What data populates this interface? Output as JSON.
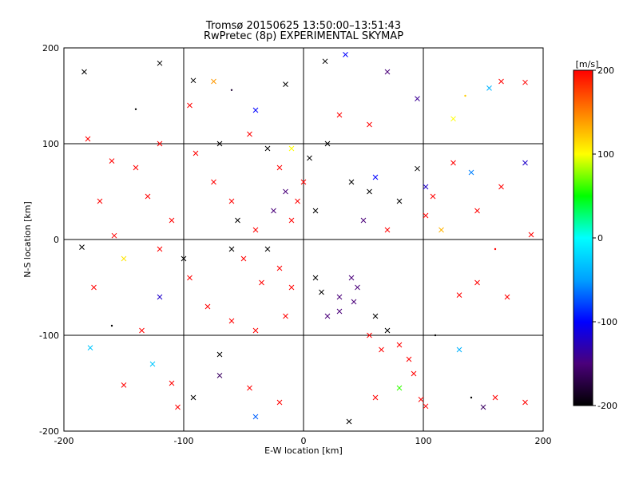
{
  "chart_data": {
    "type": "scatter",
    "title": "Tromsø 20150625 13:50:00–13:51:43",
    "subtitle": "RwPretec (8p) EXPERIMENTAL SKYMAP",
    "xlabel": "E-W location [km]",
    "ylabel": "N-S location [km]",
    "xlim": [
      -200,
      200
    ],
    "ylim": [
      -200,
      200
    ],
    "xticks": [
      -200,
      -100,
      0,
      100,
      200
    ],
    "yticks": [
      -200,
      -100,
      0,
      100,
      200
    ],
    "grid": true,
    "marker_types": [
      "dot",
      "cross"
    ],
    "colorbar": {
      "label": "[m/s]",
      "min": -200,
      "max": 200,
      "ticks": [
        200,
        100,
        0,
        -100,
        -200
      ],
      "colormap": [
        "#000000",
        "#4a007a",
        "#0000ff",
        "#00a0ff",
        "#00ffff",
        "#00ff00",
        "#ffff00",
        "#ff8000",
        "#ff0000"
      ]
    },
    "series": [
      {
        "values": [
          {
            "x": -183,
            "y": 175,
            "v": -200,
            "m": "x"
          },
          {
            "x": -140,
            "y": 136,
            "v": -200,
            "m": "d"
          },
          {
            "x": -120,
            "y": 184,
            "v": -200,
            "m": "x"
          },
          {
            "x": -92,
            "y": 166,
            "v": -200,
            "m": "x"
          },
          {
            "x": -60,
            "y": 156,
            "v": -180,
            "m": "d"
          },
          {
            "x": -15,
            "y": 162,
            "v": -200,
            "m": "x"
          },
          {
            "x": 18,
            "y": 186,
            "v": -200,
            "m": "x"
          },
          {
            "x": 35,
            "y": 193,
            "v": -100,
            "m": "x"
          },
          {
            "x": 70,
            "y": 175,
            "v": -150,
            "m": "x"
          },
          {
            "x": 95,
            "y": 147,
            "v": -140,
            "m": "x"
          },
          {
            "x": 135,
            "y": 150,
            "v": 120,
            "m": "d"
          },
          {
            "x": 165,
            "y": 165,
            "v": 200,
            "m": "x"
          },
          {
            "x": 185,
            "y": 164,
            "v": 200,
            "m": "x"
          },
          {
            "x": 155,
            "y": 158,
            "v": -40,
            "m": "x"
          },
          {
            "x": 125,
            "y": 126,
            "v": 100,
            "m": "x"
          },
          {
            "x": -180,
            "y": 105,
            "v": 200,
            "m": "x"
          },
          {
            "x": -160,
            "y": 82,
            "v": 200,
            "m": "x"
          },
          {
            "x": -170,
            "y": 40,
            "v": 200,
            "m": "x"
          },
          {
            "x": -185,
            "y": -8,
            "v": -200,
            "m": "x"
          },
          {
            "x": -158,
            "y": 4,
            "v": 200,
            "m": "x"
          },
          {
            "x": -175,
            "y": -50,
            "v": 200,
            "m": "x"
          },
          {
            "x": -150,
            "y": -20,
            "v": 110,
            "m": "x"
          },
          {
            "x": -120,
            "y": -60,
            "v": -120,
            "m": "x"
          },
          {
            "x": -135,
            "y": -95,
            "v": 200,
            "m": "x"
          },
          {
            "x": -178,
            "y": -113,
            "v": -30,
            "m": "x"
          },
          {
            "x": -150,
            "y": -152,
            "v": 200,
            "m": "x"
          },
          {
            "x": -126,
            "y": -130,
            "v": -30,
            "m": "x"
          },
          {
            "x": -105,
            "y": -175,
            "v": 200,
            "m": "x"
          },
          {
            "x": -92,
            "y": -165,
            "v": -200,
            "m": "x"
          },
          {
            "x": -70,
            "y": -142,
            "v": -160,
            "m": "x"
          },
          {
            "x": -45,
            "y": -155,
            "v": 200,
            "m": "x"
          },
          {
            "x": -40,
            "y": -185,
            "v": -70,
            "m": "x"
          },
          {
            "x": -20,
            "y": -170,
            "v": 200,
            "m": "x"
          },
          {
            "x": 38,
            "y": -190,
            "v": -200,
            "m": "x"
          },
          {
            "x": 60,
            "y": -165,
            "v": 200,
            "m": "x"
          },
          {
            "x": 80,
            "y": -155,
            "v": 60,
            "m": "x"
          },
          {
            "x": 98,
            "y": -167,
            "v": 200,
            "m": "x"
          },
          {
            "x": 102,
            "y": -174,
            "v": 200,
            "m": "x"
          },
          {
            "x": 140,
            "y": -165,
            "v": -200,
            "m": "d"
          },
          {
            "x": 150,
            "y": -175,
            "v": -160,
            "m": "x"
          },
          {
            "x": 160,
            "y": -165,
            "v": 200,
            "m": "x"
          },
          {
            "x": 185,
            "y": -170,
            "v": 200,
            "m": "x"
          },
          {
            "x": 130,
            "y": -115,
            "v": -40,
            "m": "x"
          },
          {
            "x": 110,
            "y": -100,
            "v": -200,
            "m": "d"
          },
          {
            "x": 170,
            "y": -60,
            "v": 200,
            "m": "x"
          },
          {
            "x": 145,
            "y": -45,
            "v": 200,
            "m": "x"
          },
          {
            "x": 130,
            "y": -58,
            "v": 200,
            "m": "x"
          },
          {
            "x": 160,
            "y": -10,
            "v": 200,
            "m": "d"
          },
          {
            "x": 190,
            "y": 5,
            "v": 200,
            "m": "x"
          },
          {
            "x": 145,
            "y": 30,
            "v": 200,
            "m": "x"
          },
          {
            "x": 165,
            "y": 55,
            "v": 200,
            "m": "x"
          },
          {
            "x": 185,
            "y": 80,
            "v": -120,
            "m": "x"
          },
          {
            "x": 125,
            "y": 80,
            "v": 200,
            "m": "x"
          },
          {
            "x": 140,
            "y": 70,
            "v": -60,
            "m": "x"
          },
          {
            "x": 108,
            "y": 45,
            "v": 200,
            "m": "x"
          },
          {
            "x": 102,
            "y": 25,
            "v": 200,
            "m": "x"
          },
          {
            "x": 95,
            "y": 74,
            "v": -200,
            "m": "x"
          },
          {
            "x": 102,
            "y": 55,
            "v": -120,
            "m": "x"
          },
          {
            "x": 115,
            "y": 10,
            "v": 130,
            "m": "x"
          },
          {
            "x": 80,
            "y": 40,
            "v": -200,
            "m": "x"
          },
          {
            "x": -75,
            "y": 60,
            "v": 200,
            "m": "x"
          },
          {
            "x": -60,
            "y": 40,
            "v": 200,
            "m": "x"
          },
          {
            "x": -55,
            "y": 20,
            "v": -200,
            "m": "x"
          },
          {
            "x": -40,
            "y": 10,
            "v": 200,
            "m": "x"
          },
          {
            "x": -30,
            "y": -10,
            "v": -200,
            "m": "x"
          },
          {
            "x": -50,
            "y": -20,
            "v": 200,
            "m": "x"
          },
          {
            "x": -60,
            "y": -10,
            "v": -200,
            "m": "x"
          },
          {
            "x": -20,
            "y": -30,
            "v": 200,
            "m": "x"
          },
          {
            "x": -35,
            "y": -45,
            "v": 200,
            "m": "x"
          },
          {
            "x": -10,
            "y": -50,
            "v": 200,
            "m": "x"
          },
          {
            "x": -15,
            "y": -80,
            "v": 200,
            "m": "x"
          },
          {
            "x": -40,
            "y": -95,
            "v": 200,
            "m": "x"
          },
          {
            "x": -60,
            "y": -85,
            "v": 200,
            "m": "x"
          },
          {
            "x": -80,
            "y": -70,
            "v": 200,
            "m": "x"
          },
          {
            "x": -95,
            "y": -40,
            "v": 200,
            "m": "x"
          },
          {
            "x": -100,
            "y": -20,
            "v": -200,
            "m": "x"
          },
          {
            "x": -110,
            "y": 20,
            "v": 200,
            "m": "x"
          },
          {
            "x": -120,
            "y": -10,
            "v": 200,
            "m": "x"
          },
          {
            "x": -90,
            "y": 90,
            "v": 200,
            "m": "x"
          },
          {
            "x": -70,
            "y": 100,
            "v": -200,
            "m": "x"
          },
          {
            "x": -45,
            "y": 110,
            "v": 200,
            "m": "x"
          },
          {
            "x": -30,
            "y": 95,
            "v": -200,
            "m": "x"
          },
          {
            "x": -10,
            "y": 95,
            "v": 100,
            "m": "x"
          },
          {
            "x": -20,
            "y": 75,
            "v": 200,
            "m": "x"
          },
          {
            "x": 5,
            "y": 85,
            "v": -200,
            "m": "x"
          },
          {
            "x": 20,
            "y": 100,
            "v": -200,
            "m": "x"
          },
          {
            "x": 0,
            "y": 60,
            "v": 200,
            "m": "x"
          },
          {
            "x": -15,
            "y": 50,
            "v": -150,
            "m": "x"
          },
          {
            "x": -5,
            "y": 40,
            "v": 200,
            "m": "x"
          },
          {
            "x": 10,
            "y": 30,
            "v": -200,
            "m": "x"
          },
          {
            "x": -25,
            "y": 30,
            "v": -150,
            "m": "x"
          },
          {
            "x": -10,
            "y": 20,
            "v": 200,
            "m": "x"
          },
          {
            "x": 10,
            "y": -40,
            "v": -200,
            "m": "x"
          },
          {
            "x": 15,
            "y": -55,
            "v": -200,
            "m": "x"
          },
          {
            "x": 30,
            "y": -60,
            "v": -150,
            "m": "x"
          },
          {
            "x": 40,
            "y": -40,
            "v": -150,
            "m": "x"
          },
          {
            "x": 45,
            "y": -50,
            "v": -150,
            "m": "x"
          },
          {
            "x": 42,
            "y": -65,
            "v": -150,
            "m": "x"
          },
          {
            "x": 30,
            "y": -75,
            "v": -150,
            "m": "x"
          },
          {
            "x": 20,
            "y": -80,
            "v": -150,
            "m": "x"
          },
          {
            "x": 60,
            "y": -80,
            "v": -200,
            "m": "x"
          },
          {
            "x": 70,
            "y": -95,
            "v": -200,
            "m": "x"
          },
          {
            "x": 80,
            "y": -110,
            "v": 200,
            "m": "x"
          },
          {
            "x": 88,
            "y": -125,
            "v": 200,
            "m": "x"
          },
          {
            "x": 92,
            "y": -140,
            "v": 200,
            "m": "x"
          },
          {
            "x": 65,
            "y": -115,
            "v": 200,
            "m": "x"
          },
          {
            "x": 55,
            "y": -100,
            "v": 200,
            "m": "x"
          },
          {
            "x": 50,
            "y": 20,
            "v": -150,
            "m": "x"
          },
          {
            "x": 55,
            "y": 50,
            "v": -200,
            "m": "x"
          },
          {
            "x": 60,
            "y": 65,
            "v": -100,
            "m": "x"
          },
          {
            "x": 40,
            "y": 60,
            "v": -200,
            "m": "x"
          },
          {
            "x": 70,
            "y": 10,
            "v": 200,
            "m": "x"
          },
          {
            "x": -130,
            "y": 45,
            "v": 200,
            "m": "x"
          },
          {
            "x": -140,
            "y": 75,
            "v": 200,
            "m": "x"
          },
          {
            "x": -120,
            "y": 100,
            "v": 200,
            "m": "x"
          },
          {
            "x": -95,
            "y": 140,
            "v": 200,
            "m": "x"
          },
          {
            "x": -40,
            "y": 135,
            "v": -100,
            "m": "x"
          },
          {
            "x": 30,
            "y": 130,
            "v": 200,
            "m": "x"
          },
          {
            "x": 55,
            "y": 120,
            "v": 200,
            "m": "x"
          },
          {
            "x": -110,
            "y": -150,
            "v": 200,
            "m": "x"
          },
          {
            "x": -160,
            "y": -90,
            "v": -200,
            "m": "d"
          },
          {
            "x": -70,
            "y": -120,
            "v": -200,
            "m": "x"
          },
          {
            "x": -75,
            "y": 165,
            "v": 140,
            "m": "x"
          }
        ]
      }
    ]
  }
}
